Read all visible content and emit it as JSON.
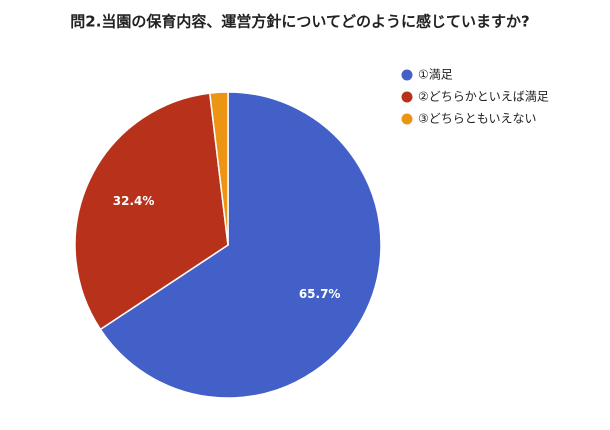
{
  "chart_data": {
    "type": "pie",
    "title": "問2.当園の保育内容、運営方針についてどのように感じていますか?",
    "categories": [
      "①満足",
      "②どちらかといえば満足",
      "③どちらともいえない"
    ],
    "values": [
      65.7,
      32.4,
      1.9
    ],
    "value_labels": [
      "65.7%",
      "32.4%",
      null
    ],
    "colors": [
      "#4360c8",
      "#b8321b",
      "#ec9413"
    ],
    "legend": "right"
  }
}
